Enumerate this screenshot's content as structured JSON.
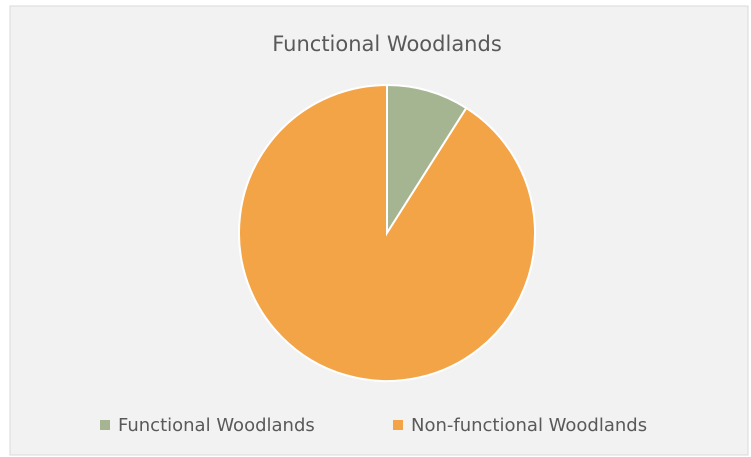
{
  "chart_data": {
    "type": "pie",
    "title": "Functional Woodlands",
    "categories": [
      "Functional Woodlands",
      "Non-functional Woodlands"
    ],
    "values": [
      9,
      91
    ],
    "colors": [
      "#a5b592",
      "#f3a447"
    ],
    "legend": "bottom"
  }
}
